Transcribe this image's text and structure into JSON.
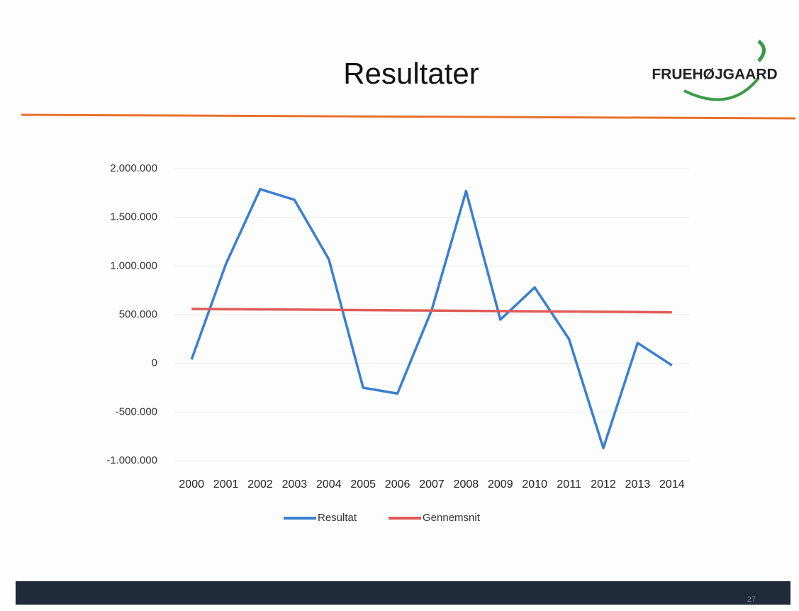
{
  "slide": {
    "logo": "FRUEHØJGAARD",
    "page_number": "27"
  },
  "chart_data": {
    "type": "line",
    "title": "Resultater",
    "categories": [
      "2000",
      "2001",
      "2002",
      "2003",
      "2004",
      "2005",
      "2006",
      "2007",
      "2008",
      "2009",
      "2010",
      "2011",
      "2012",
      "2013",
      "2014"
    ],
    "series": [
      {
        "name": "Resultat",
        "color": "#3a7fd0",
        "values": [
          40000,
          1020000,
          1790000,
          1680000,
          1070000,
          -250000,
          -310000,
          550000,
          1770000,
          450000,
          780000,
          250000,
          -870000,
          210000,
          -20000
        ]
      },
      {
        "name": "Gennemsnit",
        "color": "#e05a57",
        "values": [
          560000,
          557500,
          555000,
          552500,
          550000,
          547500,
          545000,
          542500,
          540000,
          537500,
          535000,
          532500,
          530000,
          527500,
          525000
        ]
      }
    ],
    "ylim": [
      -1000000,
      2000000
    ],
    "yticks": [
      {
        "value": -1000000,
        "label": "-1.000.000"
      },
      {
        "value": -500000,
        "label": "-500.000"
      },
      0,
      {
        "value": 500000,
        "label": "500.000"
      },
      {
        "value": 1000000,
        "label": "1.000.000"
      },
      {
        "value": 1500000,
        "label": "1.500.000"
      },
      {
        "value": 2000000,
        "label": "2.000.000"
      }
    ],
    "grid": true,
    "legend": "bottom"
  }
}
